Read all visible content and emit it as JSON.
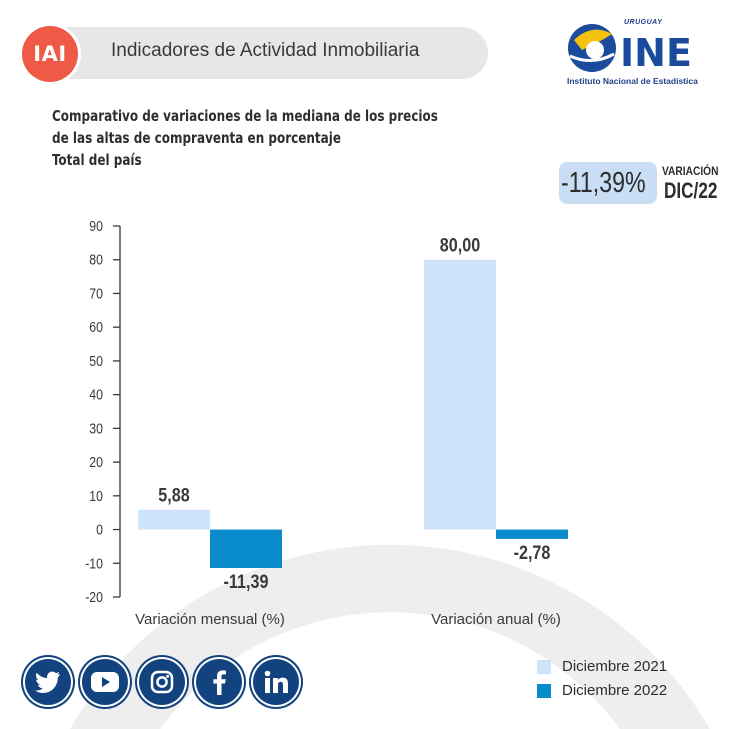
{
  "header": {
    "badge": "IAI",
    "title": "Indicadores de Actividad Inmobiliaria",
    "logo_text": "INE",
    "logo_country": "URUGUAY",
    "logo_caption": "Instituto Nacional de Estadística"
  },
  "subtitle_lines": [
    "Comparativo de variaciones de la mediana de los precios",
    "de las altas de compraventa en porcentaje",
    "Total del país"
  ],
  "highlight": {
    "value": "-11,39%",
    "label": "VARIACIÓN",
    "period": "DIC/22"
  },
  "colors": {
    "accent_red": "#ee5a45",
    "navy": "#13437e",
    "series_2021": "#cfe3fa",
    "series_2022": "#0a8bcb"
  },
  "social_icons": [
    "twitter-icon",
    "youtube-icon",
    "instagram-icon",
    "facebook-icon",
    "linkedin-icon"
  ],
  "chart_data": {
    "type": "bar",
    "title": "Comparativo de variaciones de la mediana de los precios de las altas de compraventa en porcentaje",
    "categories": [
      "Variación mensual (%)",
      "Variación anual (%)"
    ],
    "series": [
      {
        "name": "Diciembre 2021",
        "values": [
          5.88,
          80.0
        ],
        "labels": [
          "5,88",
          "80,00"
        ],
        "color": "#cfe3fa"
      },
      {
        "name": "Diciembre 2022",
        "values": [
          -11.39,
          -2.78
        ],
        "labels": [
          "-11,39",
          "-2,78"
        ],
        "color": "#0a8bcb"
      }
    ],
    "yticks": [
      90,
      80,
      70,
      60,
      50,
      40,
      30,
      20,
      10,
      0,
      -10,
      -20
    ],
    "ylim": [
      -20,
      90
    ],
    "grid": false,
    "legend": "bottom-right"
  }
}
